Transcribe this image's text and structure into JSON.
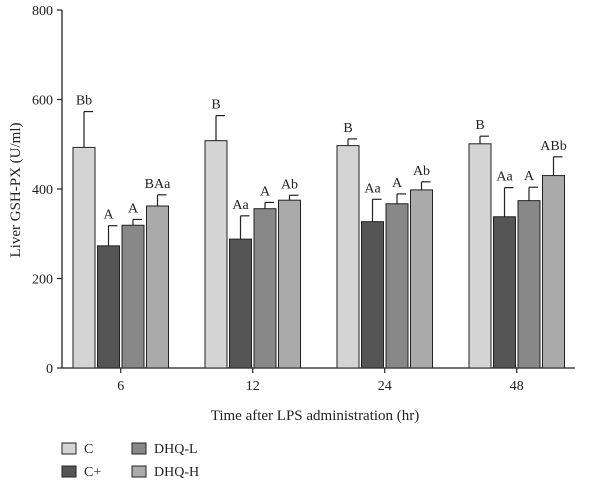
{
  "chart_data": {
    "type": "bar",
    "title": "",
    "xlabel": "Time after LPS administration (hr)",
    "ylabel": "Liver GSH-PX (U/ml)",
    "ylim": [
      0,
      800
    ],
    "yticks": [
      0,
      200,
      400,
      600,
      800
    ],
    "categories": [
      "6",
      "12",
      "24",
      "48"
    ],
    "legend_position": "bottom-left",
    "series": [
      {
        "name": "C",
        "color": "#d4d4d4",
        "values": [
          493,
          508,
          497,
          501
        ],
        "errors": [
          80,
          56,
          15,
          17
        ],
        "labels": [
          "Bb",
          "B",
          "B",
          "B"
        ]
      },
      {
        "name": "C+",
        "color": "#555555",
        "values": [
          273,
          288,
          327,
          338
        ],
        "errors": [
          45,
          52,
          50,
          65
        ],
        "labels": [
          "A",
          "Aa",
          "Aa",
          "Aa"
        ]
      },
      {
        "name": "DHQ-L",
        "color": "#888888",
        "values": [
          319,
          356,
          367,
          374
        ],
        "errors": [
          13,
          14,
          22,
          30
        ],
        "labels": [
          "A",
          "A",
          "A",
          "A"
        ]
      },
      {
        "name": "DHQ-H",
        "color": "#aaaaaa",
        "values": [
          362,
          375,
          398,
          430
        ],
        "errors": [
          25,
          11,
          18,
          42
        ],
        "labels": [
          "BAa",
          "Ab",
          "Ab",
          "ABb"
        ]
      }
    ]
  }
}
